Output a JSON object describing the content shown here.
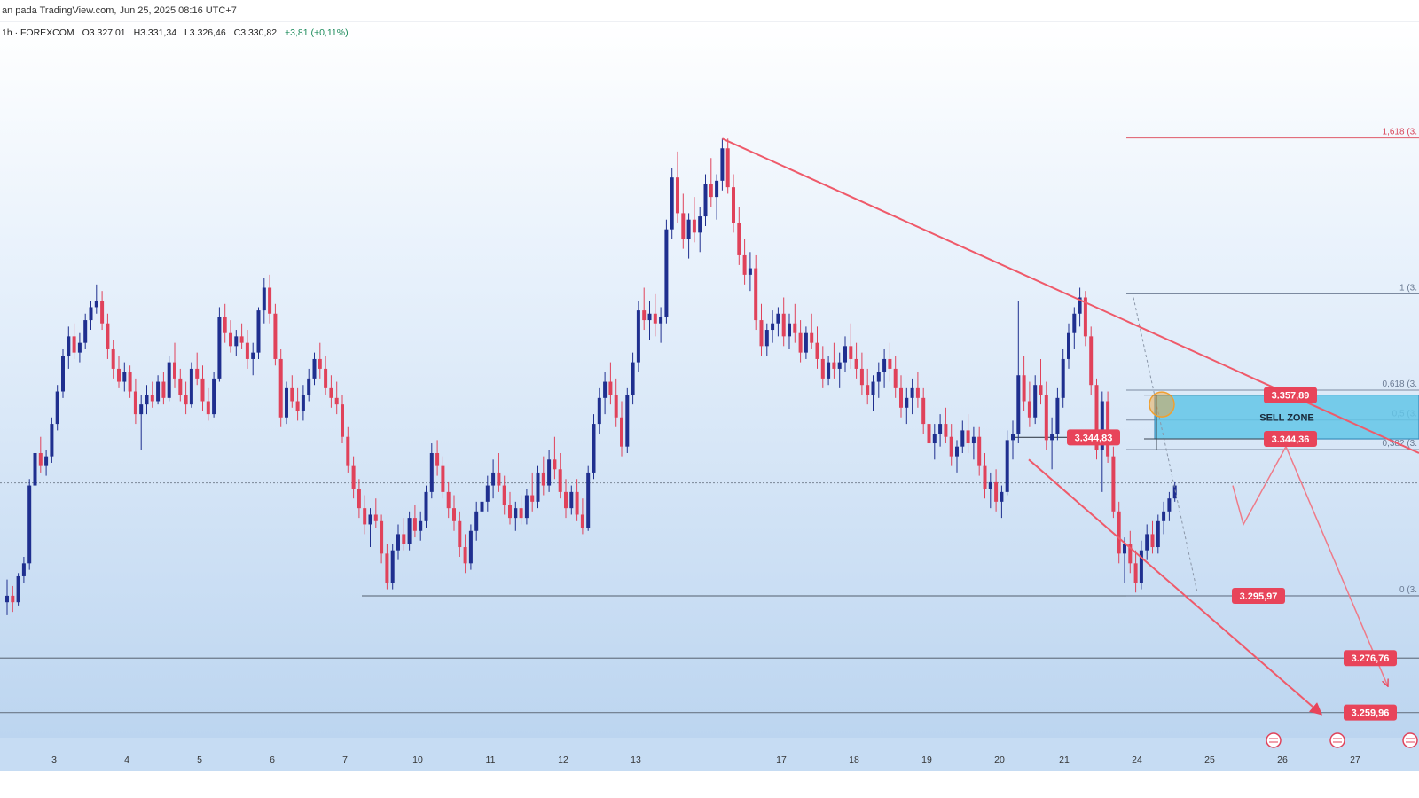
{
  "header": {
    "publisher_line": "an pada TradingView.com, Jun 25, 2025 08:16 UTC+7"
  },
  "ohlc": {
    "symbol_line": "1h · FOREXCOM",
    "open": "O3.327,01",
    "high": "H3.331,34",
    "low": "L3.326,46",
    "close": "C3.330,82",
    "change": "+3,81 (+0,11%)"
  },
  "colors": {
    "background_top": "#ffffff",
    "background_bottom": "#b9d3ef",
    "bull": "#1f2f8f",
    "bear": "#e0425a",
    "trendline": "#ef5a6a",
    "price_label": "#e8445a",
    "sell_zone": "#63c5e8",
    "level_line": "#6b7888",
    "fib_label": "#d9455a",
    "marker": "#f0a030"
  },
  "chart_data": {
    "type": "candlestick",
    "symbol": "FOREXCOM",
    "interval": "1h",
    "x_ticks": [
      "3",
      "4",
      "5",
      "6",
      "7",
      "10",
      "11",
      "12",
      "13",
      "17",
      "18",
      "19",
      "20",
      "21",
      "24",
      "25",
      "26",
      "27"
    ],
    "ylim": [
      3250,
      3460
    ],
    "price_levels": [
      {
        "label": "3.357,89",
        "value": 3357.89
      },
      {
        "label": "3.344,83",
        "value": 3344.83
      },
      {
        "label": "3.344,36",
        "value": 3344.36
      },
      {
        "label": "3.295,97",
        "value": 3295.97
      },
      {
        "label": "3.276,76",
        "value": 3276.76
      },
      {
        "label": "3.259,96",
        "value": 3259.96
      }
    ],
    "fibonacci": [
      {
        "ratio": "1,618 (3.",
        "value": 3437.2
      },
      {
        "ratio": "1 (3.",
        "value": 3389.1
      },
      {
        "ratio": "0,618 (3.",
        "value": 3359.4
      },
      {
        "ratio": "0,5 (3.",
        "value": 3350.2
      },
      {
        "ratio": "0,382 (3.",
        "value": 3341.1
      },
      {
        "ratio": "0 (3.",
        "value": 3296.0
      }
    ],
    "sell_zone": {
      "label": "SELL ZONE",
      "from": 3344.36,
      "to": 3357.89
    },
    "annotations": {
      "current_price": 3330.82
    },
    "candles": [
      [
        3294,
        3301,
        3290,
        3296
      ],
      [
        3296,
        3299,
        3291,
        3294
      ],
      [
        3294,
        3303,
        3293,
        3302
      ],
      [
        3302,
        3308,
        3300,
        3306
      ],
      [
        3306,
        3332,
        3304,
        3330
      ],
      [
        3330,
        3342,
        3328,
        3340
      ],
      [
        3340,
        3345,
        3334,
        3336
      ],
      [
        3336,
        3341,
        3333,
        3339
      ],
      [
        3339,
        3351,
        3337,
        3349
      ],
      [
        3349,
        3361,
        3347,
        3359
      ],
      [
        3359,
        3372,
        3357,
        3370
      ],
      [
        3370,
        3379,
        3366,
        3376
      ],
      [
        3376,
        3380,
        3369,
        3371
      ],
      [
        3371,
        3377,
        3368,
        3374
      ],
      [
        3374,
        3383,
        3372,
        3381
      ],
      [
        3381,
        3387,
        3378,
        3385
      ],
      [
        3385,
        3392,
        3383,
        3387
      ],
      [
        3387,
        3390,
        3378,
        3380
      ],
      [
        3380,
        3383,
        3369,
        3372
      ],
      [
        3372,
        3375,
        3363,
        3366
      ],
      [
        3366,
        3370,
        3360,
        3362
      ],
      [
        3362,
        3368,
        3359,
        3365
      ],
      [
        3365,
        3367,
        3357,
        3359
      ],
      [
        3359,
        3363,
        3349,
        3352
      ],
      [
        3352,
        3358,
        3341,
        3355
      ],
      [
        3355,
        3361,
        3352,
        3358
      ],
      [
        3358,
        3362,
        3354,
        3356
      ],
      [
        3356,
        3364,
        3355,
        3362
      ],
      [
        3362,
        3365,
        3355,
        3357
      ],
      [
        3357,
        3370,
        3356,
        3368
      ],
      [
        3368,
        3374,
        3360,
        3363
      ],
      [
        3363,
        3366,
        3356,
        3358
      ],
      [
        3358,
        3362,
        3352,
        3355
      ],
      [
        3355,
        3368,
        3354,
        3366
      ],
      [
        3366,
        3371,
        3361,
        3363
      ],
      [
        3363,
        3367,
        3353,
        3356
      ],
      [
        3356,
        3360,
        3350,
        3352
      ],
      [
        3352,
        3365,
        3351,
        3363
      ],
      [
        3363,
        3385,
        3362,
        3382
      ],
      [
        3382,
        3386,
        3374,
        3377
      ],
      [
        3377,
        3381,
        3371,
        3373
      ],
      [
        3373,
        3378,
        3370,
        3376
      ],
      [
        3376,
        3380,
        3372,
        3374
      ],
      [
        3374,
        3378,
        3366,
        3369
      ],
      [
        3369,
        3374,
        3364,
        3371
      ],
      [
        3371,
        3385,
        3369,
        3384
      ],
      [
        3384,
        3394,
        3380,
        3391
      ],
      [
        3391,
        3395,
        3380,
        3383
      ],
      [
        3383,
        3386,
        3367,
        3369
      ],
      [
        3369,
        3372,
        3348,
        3351
      ],
      [
        3351,
        3362,
        3349,
        3360
      ],
      [
        3360,
        3364,
        3354,
        3356
      ],
      [
        3356,
        3360,
        3350,
        3353
      ],
      [
        3353,
        3361,
        3350,
        3358
      ],
      [
        3358,
        3366,
        3356,
        3363
      ],
      [
        3363,
        3371,
        3361,
        3369
      ],
      [
        3369,
        3374,
        3363,
        3366
      ],
      [
        3366,
        3370,
        3358,
        3360
      ],
      [
        3360,
        3364,
        3354,
        3357
      ],
      [
        3357,
        3362,
        3352,
        3355
      ],
      [
        3355,
        3358,
        3343,
        3345
      ],
      [
        3345,
        3348,
        3334,
        3336
      ],
      [
        3336,
        3339,
        3326,
        3329
      ],
      [
        3329,
        3332,
        3320,
        3323
      ],
      [
        3323,
        3327,
        3315,
        3318
      ],
      [
        3318,
        3323,
        3311,
        3321
      ],
      [
        3321,
        3326,
        3317,
        3319
      ],
      [
        3319,
        3321,
        3306,
        3309
      ],
      [
        3309,
        3312,
        3298,
        3300
      ],
      [
        3300,
        3312,
        3298,
        3310
      ],
      [
        3310,
        3318,
        3307,
        3315
      ],
      [
        3315,
        3320,
        3310,
        3312
      ],
      [
        3312,
        3322,
        3310,
        3320
      ],
      [
        3320,
        3324,
        3314,
        3316
      ],
      [
        3316,
        3322,
        3313,
        3319
      ],
      [
        3319,
        3330,
        3317,
        3328
      ],
      [
        3328,
        3343,
        3326,
        3340
      ],
      [
        3340,
        3344,
        3333,
        3336
      ],
      [
        3336,
        3339,
        3326,
        3328
      ],
      [
        3328,
        3331,
        3320,
        3323
      ],
      [
        3323,
        3327,
        3316,
        3319
      ],
      [
        3319,
        3322,
        3308,
        3311
      ],
      [
        3311,
        3315,
        3303,
        3306
      ],
      [
        3306,
        3318,
        3304,
        3316
      ],
      [
        3316,
        3325,
        3313,
        3322
      ],
      [
        3322,
        3329,
        3318,
        3325
      ],
      [
        3325,
        3333,
        3322,
        3330
      ],
      [
        3330,
        3338,
        3326,
        3334
      ],
      [
        3334,
        3340,
        3328,
        3330
      ],
      [
        3330,
        3333,
        3321,
        3324
      ],
      [
        3324,
        3328,
        3318,
        3320
      ],
      [
        3320,
        3325,
        3316,
        3323
      ],
      [
        3323,
        3327,
        3318,
        3320
      ],
      [
        3320,
        3329,
        3318,
        3327
      ],
      [
        3327,
        3334,
        3322,
        3325
      ],
      [
        3325,
        3336,
        3323,
        3334
      ],
      [
        3334,
        3339,
        3327,
        3330
      ],
      [
        3330,
        3341,
        3328,
        3338
      ],
      [
        3338,
        3345,
        3332,
        3335
      ],
      [
        3335,
        3340,
        3326,
        3328
      ],
      [
        3328,
        3332,
        3320,
        3323
      ],
      [
        3323,
        3330,
        3321,
        3328
      ],
      [
        3328,
        3332,
        3319,
        3321
      ],
      [
        3321,
        3326,
        3315,
        3317
      ],
      [
        3317,
        3336,
        3316,
        3334
      ],
      [
        3334,
        3352,
        3332,
        3349
      ],
      [
        3349,
        3360,
        3346,
        3357
      ],
      [
        3357,
        3365,
        3352,
        3362
      ],
      [
        3362,
        3368,
        3355,
        3358
      ],
      [
        3358,
        3363,
        3348,
        3351
      ],
      [
        3351,
        3356,
        3339,
        3342
      ],
      [
        3342,
        3360,
        3340,
        3358
      ],
      [
        3358,
        3371,
        3355,
        3368
      ],
      [
        3368,
        3387,
        3365,
        3384
      ],
      [
        3384,
        3391,
        3378,
        3381
      ],
      [
        3381,
        3387,
        3375,
        3383
      ],
      [
        3383,
        3389,
        3376,
        3380
      ],
      [
        3380,
        3385,
        3374,
        3382
      ],
      [
        3382,
        3412,
        3380,
        3409
      ],
      [
        3409,
        3428,
        3406,
        3425
      ],
      [
        3425,
        3433,
        3411,
        3414
      ],
      [
        3414,
        3420,
        3403,
        3406
      ],
      [
        3406,
        3414,
        3400,
        3412
      ],
      [
        3412,
        3419,
        3405,
        3408
      ],
      [
        3408,
        3416,
        3402,
        3413
      ],
      [
        3413,
        3426,
        3410,
        3423
      ],
      [
        3423,
        3431,
        3416,
        3419
      ],
      [
        3419,
        3426,
        3412,
        3424
      ],
      [
        3424,
        3437,
        3421,
        3434
      ],
      [
        3434,
        3437,
        3420,
        3422
      ],
      [
        3422,
        3426,
        3408,
        3411
      ],
      [
        3411,
        3416,
        3398,
        3401
      ],
      [
        3401,
        3406,
        3392,
        3395
      ],
      [
        3395,
        3402,
        3390,
        3397
      ],
      [
        3397,
        3401,
        3378,
        3381
      ],
      [
        3381,
        3386,
        3370,
        3373
      ],
      [
        3373,
        3380,
        3370,
        3378
      ],
      [
        3378,
        3384,
        3374,
        3380
      ],
      [
        3380,
        3385,
        3376,
        3383
      ],
      [
        3383,
        3388,
        3373,
        3376
      ],
      [
        3376,
        3383,
        3372,
        3380
      ],
      [
        3380,
        3386,
        3374,
        3377
      ],
      [
        3377,
        3381,
        3368,
        3371
      ],
      [
        3371,
        3379,
        3369,
        3377
      ],
      [
        3377,
        3383,
        3372,
        3374
      ],
      [
        3374,
        3379,
        3366,
        3369
      ],
      [
        3369,
        3373,
        3360,
        3363
      ],
      [
        3363,
        3370,
        3361,
        3368
      ],
      [
        3368,
        3374,
        3363,
        3366
      ],
      [
        3366,
        3371,
        3360,
        3368
      ],
      [
        3368,
        3376,
        3365,
        3373
      ],
      [
        3373,
        3380,
        3366,
        3369
      ],
      [
        3369,
        3374,
        3363,
        3366
      ],
      [
        3366,
        3371,
        3358,
        3361
      ],
      [
        3361,
        3366,
        3355,
        3358
      ],
      [
        3358,
        3364,
        3353,
        3362
      ],
      [
        3362,
        3368,
        3357,
        3365
      ],
      [
        3365,
        3372,
        3360,
        3369
      ],
      [
        3369,
        3374,
        3362,
        3366
      ],
      [
        3366,
        3370,
        3357,
        3360
      ],
      [
        3360,
        3364,
        3351,
        3354
      ],
      [
        3354,
        3360,
        3349,
        3357
      ],
      [
        3357,
        3363,
        3352,
        3360
      ],
      [
        3360,
        3365,
        3354,
        3357
      ],
      [
        3357,
        3360,
        3346,
        3349
      ],
      [
        3349,
        3353,
        3340,
        3343
      ],
      [
        3343,
        3349,
        3338,
        3346
      ],
      [
        3346,
        3352,
        3342,
        3349
      ],
      [
        3349,
        3354,
        3343,
        3345
      ],
      [
        3345,
        3349,
        3336,
        3339
      ],
      [
        3339,
        3344,
        3334,
        3342
      ],
      [
        3342,
        3350,
        3340,
        3347
      ],
      [
        3347,
        3352,
        3340,
        3343
      ],
      [
        3343,
        3348,
        3338,
        3345
      ],
      [
        3345,
        3348,
        3333,
        3336
      ],
      [
        3336,
        3340,
        3326,
        3329
      ],
      [
        3329,
        3334,
        3323,
        3331
      ],
      [
        3331,
        3335,
        3322,
        3325
      ],
      [
        3325,
        3330,
        3320,
        3328
      ],
      [
        3328,
        3347,
        3327,
        3344
      ],
      [
        3344,
        3350,
        3338,
        3346
      ],
      [
        3346,
        3387,
        3343,
        3364
      ],
      [
        3364,
        3370,
        3353,
        3356
      ],
      [
        3356,
        3362,
        3348,
        3351
      ],
      [
        3351,
        3364,
        3349,
        3361
      ],
      [
        3361,
        3369,
        3355,
        3358
      ],
      [
        3358,
        3362,
        3341,
        3344
      ],
      [
        3344,
        3351,
        3335,
        3346
      ],
      [
        3346,
        3360,
        3344,
        3357
      ],
      [
        3357,
        3372,
        3354,
        3369
      ],
      [
        3369,
        3380,
        3366,
        3377
      ],
      [
        3377,
        3385,
        3372,
        3383
      ],
      [
        3383,
        3391,
        3379,
        3388
      ],
      [
        3388,
        3390,
        3373,
        3376
      ],
      [
        3376,
        3379,
        3358,
        3361
      ],
      [
        3361,
        3363,
        3338,
        3341
      ],
      [
        3341,
        3359,
        3328,
        3356
      ],
      [
        3356,
        3359,
        3337,
        3339
      ],
      [
        3339,
        3342,
        3320,
        3322
      ],
      [
        3322,
        3325,
        3306,
        3309
      ],
      [
        3309,
        3314,
        3300,
        3312
      ],
      [
        3312,
        3316,
        3303,
        3306
      ],
      [
        3306,
        3310,
        3297,
        3300
      ],
      [
        3300,
        3313,
        3298,
        3310
      ],
      [
        3310,
        3318,
        3307,
        3315
      ],
      [
        3315,
        3319,
        3309,
        3311
      ],
      [
        3311,
        3321,
        3309,
        3319
      ],
      [
        3319,
        3325,
        3315,
        3322
      ],
      [
        3322,
        3328,
        3319,
        3326
      ],
      [
        3326,
        3331,
        3325,
        3330
      ]
    ]
  }
}
